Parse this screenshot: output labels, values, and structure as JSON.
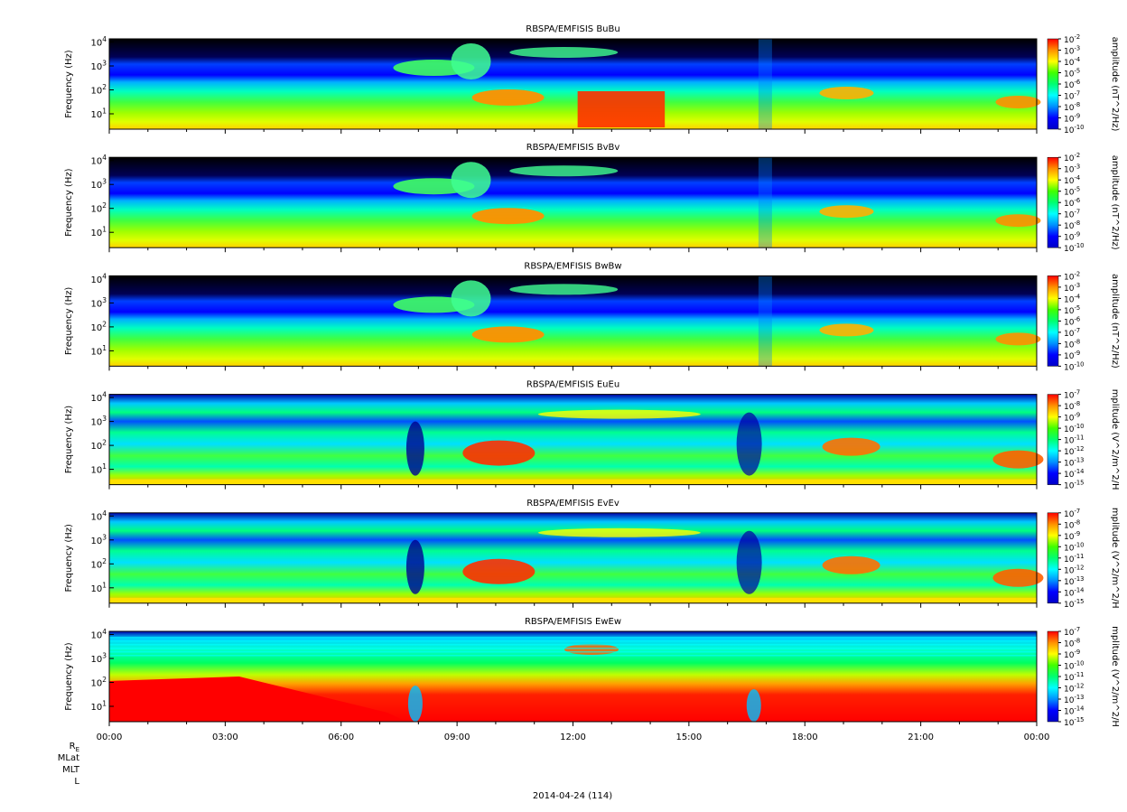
{
  "chart_data": [
    {
      "type": "heatmap",
      "title": "RBSPA/EMFISIS  BuBu",
      "ylabel": "Frequency (Hz)",
      "ylog": true,
      "y_tick_labels": [
        "10^1",
        "10^2",
        "10^3",
        "10^4"
      ],
      "colorbar": {
        "label": "amplitude (nT^2/Hz)",
        "range": [
          -10,
          -2
        ],
        "tick_labels": [
          "10^-2",
          "10^-3",
          "10^-4",
          "10^-5",
          "10^-6",
          "10^-7",
          "10^-8",
          "10^-9",
          "10^-10"
        ]
      }
    },
    {
      "type": "heatmap",
      "title": "RBSPA/EMFISIS  BvBv",
      "ylabel": "Frequency (Hz)",
      "ylog": true,
      "y_tick_labels": [
        "10^1",
        "10^2",
        "10^3",
        "10^4"
      ],
      "colorbar": {
        "label": "amplitude (nT^2/Hz)",
        "range": [
          -10,
          -2
        ],
        "tick_labels": [
          "10^-2",
          "10^-3",
          "10^-4",
          "10^-5",
          "10^-6",
          "10^-7",
          "10^-8",
          "10^-9",
          "10^-10"
        ]
      }
    },
    {
      "type": "heatmap",
      "title": "RBSPA/EMFISIS  BwBw",
      "ylabel": "Frequency (Hz)",
      "ylog": true,
      "y_tick_labels": [
        "10^1",
        "10^2",
        "10^3",
        "10^4"
      ],
      "colorbar": {
        "label": "amplitude (nT^2/Hz)",
        "range": [
          -10,
          -2
        ],
        "tick_labels": [
          "10^-2",
          "10^-3",
          "10^-4",
          "10^-5",
          "10^-6",
          "10^-7",
          "10^-8",
          "10^-9",
          "10^-10"
        ]
      }
    },
    {
      "type": "heatmap",
      "title": "RBSPA/EMFISIS  EuEu",
      "ylabel": "Frequency (Hz)",
      "ylog": true,
      "y_tick_labels": [
        "10^1",
        "10^2",
        "10^3",
        "10^4"
      ],
      "colorbar": {
        "label": "mplitude (V^2/m^2/H",
        "range": [
          -15,
          -7
        ],
        "tick_labels": [
          "10^-7",
          "10^-8",
          "10^-9",
          "10^-10",
          "10^-11",
          "10^-12",
          "10^-13",
          "10^-14",
          "10^-15"
        ]
      }
    },
    {
      "type": "heatmap",
      "title": "RBSPA/EMFISIS  EvEv",
      "ylabel": "Frequency (Hz)",
      "ylog": true,
      "y_tick_labels": [
        "10^1",
        "10^2",
        "10^3",
        "10^4"
      ],
      "colorbar": {
        "label": "mplitude (V^2/m^2/H",
        "range": [
          -15,
          -7
        ],
        "tick_labels": [
          "10^-7",
          "10^-8",
          "10^-9",
          "10^-10",
          "10^-11",
          "10^-12",
          "10^-13",
          "10^-14",
          "10^-15"
        ]
      }
    },
    {
      "type": "heatmap",
      "title": "RBSPA/EMFISIS  EwEw",
      "ylabel": "Frequency (Hz)",
      "ylog": true,
      "y_tick_labels": [
        "10^1",
        "10^2",
        "10^3",
        "10^4"
      ],
      "colorbar": {
        "label": "mplitude (V^2/m^2/H",
        "range": [
          -15,
          -7
        ],
        "tick_labels": [
          "10^-7",
          "10^-8",
          "10^-9",
          "10^-10",
          "10^-11",
          "10^-12",
          "10^-13",
          "10^-14",
          "10^-15"
        ]
      }
    }
  ],
  "x_axis": {
    "tick_labels": [
      "00:00",
      "03:00",
      "06:00",
      "09:00",
      "12:00",
      "15:00",
      "18:00",
      "21:00",
      "00:00"
    ],
    "ephemeris_labels": [
      "R_E",
      "MLat",
      "MLT",
      "L"
    ],
    "date_label": "2014-04-24 (114)"
  },
  "colors": {
    "background": "#000000",
    "colormap": [
      "#0000c8",
      "#0000ff",
      "#0090ff",
      "#00ffff",
      "#00ff70",
      "#40ff00",
      "#ffff00",
      "#ff9000",
      "#ff0000"
    ]
  }
}
